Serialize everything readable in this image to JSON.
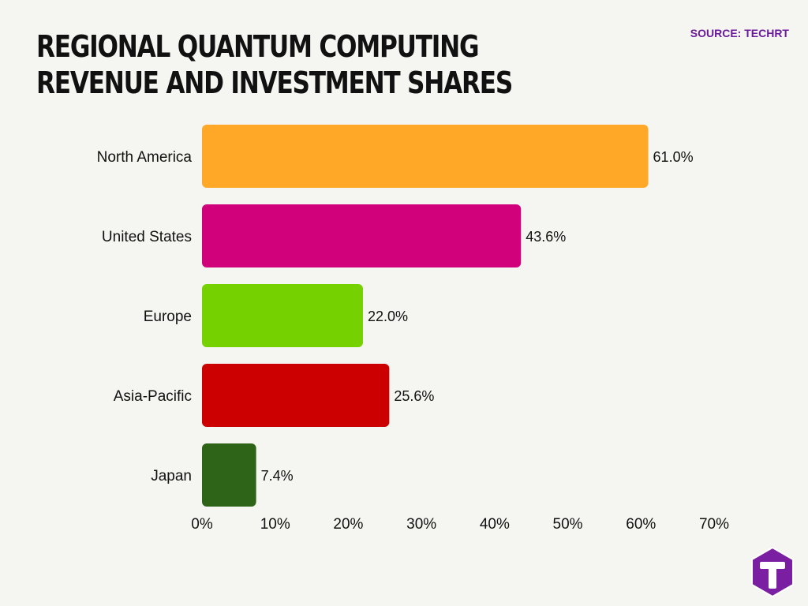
{
  "title": "REGIONAL QUANTUM COMPUTING REVENUE AND INVESTMENT SHARES",
  "source": "SOURCE: TECHRT",
  "logo": {
    "icon": "techrt-logo-icon",
    "letter": "T",
    "color": "#7b1fa2"
  },
  "chart_data": {
    "type": "bar",
    "orientation": "horizontal",
    "categories": [
      "North America",
      "United States",
      "Europe",
      "Asia-Pacific",
      "Japan"
    ],
    "values": [
      61.0,
      43.6,
      22.0,
      25.6,
      7.4
    ],
    "value_labels": [
      "61.0%",
      "43.6%",
      "22.0%",
      "25.6%",
      "7.4%"
    ],
    "colors": [
      "#ffa726",
      "#d1007b",
      "#76d100",
      "#cc0000",
      "#2e6418"
    ],
    "xlim": [
      0,
      70
    ],
    "xticks": [
      0,
      10,
      20,
      30,
      40,
      50,
      60,
      70
    ],
    "xtick_labels": [
      "0%",
      "10%",
      "20%",
      "30%",
      "40%",
      "50%",
      "60%",
      "70%"
    ],
    "title": "REGIONAL QUANTUM COMPUTING REVENUE AND INVESTMENT SHARES",
    "xlabel": "",
    "ylabel": "",
    "grid": false,
    "legend": false
  }
}
